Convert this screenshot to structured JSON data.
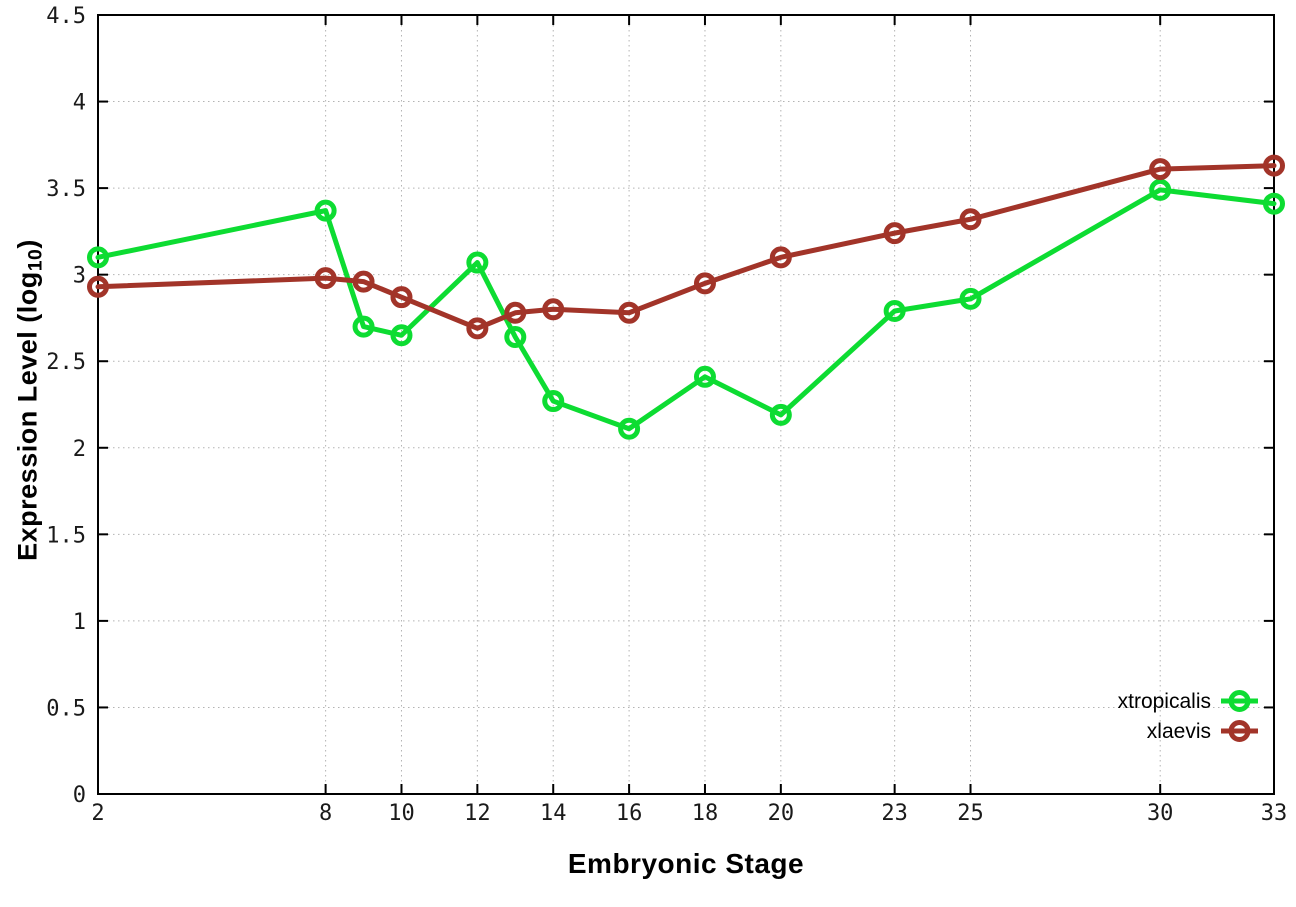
{
  "page": {
    "background": "#ffffff"
  },
  "chart_data": {
    "type": "line",
    "title": "",
    "xlabel": "Embryonic Stage",
    "ylabel": "Expression Level (log10)",
    "ylabel_parts": {
      "prefix": "Expression Level (log",
      "sub": "10",
      "suffix": ")"
    },
    "xlim": [
      2,
      33
    ],
    "ylim": [
      0,
      4.5
    ],
    "grid": true,
    "x_ticks": {
      "values": [
        2,
        8,
        10,
        12,
        14,
        16,
        18,
        20,
        23,
        25,
        30,
        33
      ],
      "labels": [
        "2",
        "8",
        "10",
        "12",
        "14",
        "16",
        "18",
        "20",
        "23",
        "25",
        "30",
        "33"
      ]
    },
    "y_ticks": {
      "values": [
        0,
        0.5,
        1,
        1.5,
        2,
        2.5,
        3,
        3.5,
        4,
        4.5
      ],
      "labels": [
        "0",
        "0.5",
        "1",
        "1.5",
        "2",
        "2.5",
        "3",
        "3.5",
        "4",
        "4.5"
      ]
    },
    "x": [
      2,
      8,
      9,
      10,
      12,
      13,
      14,
      16,
      18,
      20,
      23,
      25,
      30,
      33
    ],
    "series": [
      {
        "name": "xtropicalis",
        "color": "#0ddc32",
        "marker": "open-circle",
        "values": [
          3.1,
          3.37,
          2.7,
          2.65,
          3.07,
          2.64,
          2.27,
          2.11,
          2.41,
          2.19,
          2.79,
          2.86,
          3.49,
          3.41
        ]
      },
      {
        "name": "xlaevis",
        "color": "#a23429",
        "marker": "open-circle",
        "values": [
          2.93,
          2.98,
          2.96,
          2.87,
          2.69,
          2.78,
          2.8,
          2.78,
          2.95,
          3.1,
          3.24,
          3.32,
          3.61,
          3.63
        ]
      }
    ],
    "legend": {
      "position": "inside-bottom-right",
      "entries": [
        "xtropicalis",
        "xlaevis"
      ]
    },
    "colors": {
      "grid": "#b3b3b3",
      "axis": "#000000",
      "tick_text": "#1a1a1a"
    }
  }
}
